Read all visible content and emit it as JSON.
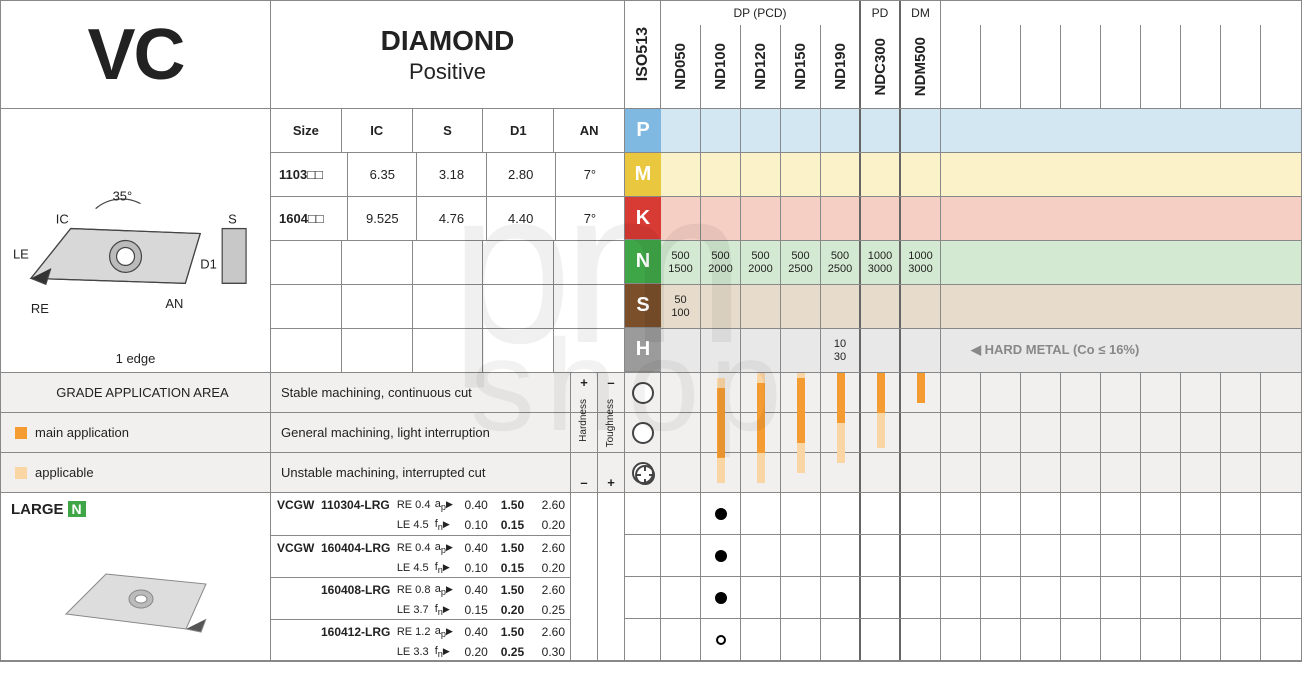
{
  "header": {
    "code": "VC",
    "name": "DIAMOND",
    "subtitle": "Positive",
    "iso_label": "ISO513"
  },
  "grade_groups": [
    {
      "label": "DP (PCD)",
      "span": 5
    },
    {
      "label": "PD",
      "span": 1
    },
    {
      "label": "DM",
      "span": 1
    }
  ],
  "grades": [
    "ND050",
    "ND100",
    "ND120",
    "ND150",
    "ND190",
    "NDC300",
    "NDM500"
  ],
  "extra_cols": 9,
  "geometry": {
    "angle": "35°",
    "labels": [
      "IC",
      "S",
      "LE",
      "D1",
      "AN",
      "RE"
    ],
    "caption": "1 edge"
  },
  "size_table": {
    "headers": [
      "Size",
      "IC",
      "S",
      "D1",
      "AN"
    ],
    "rows": [
      {
        "size": "1103□□",
        "ic": "6.35",
        "s": "3.18",
        "d1": "2.80",
        "an": "7°"
      },
      {
        "size": "1604□□",
        "ic": "9.525",
        "s": "4.76",
        "d1": "4.40",
        "an": "7°"
      }
    ],
    "blank_rows": 3
  },
  "iso_classes": [
    {
      "code": "P",
      "bg": "#7fb8e0",
      "row_bg": "#d3e7f3"
    },
    {
      "code": "M",
      "bg": "#e9c83f",
      "row_bg": "#fbf2c9"
    },
    {
      "code": "K",
      "bg": "#d83a34",
      "row_bg": "#f5cfc4"
    },
    {
      "code": "N",
      "bg": "#3fa648",
      "row_bg": "#d3e9d1",
      "vals": [
        [
          "500",
          "1500"
        ],
        [
          "500",
          "2000"
        ],
        [
          "500",
          "2000"
        ],
        [
          "500",
          "2500"
        ],
        [
          "500",
          "2500"
        ],
        [
          "1000",
          "3000"
        ],
        [
          "1000",
          "3000"
        ]
      ]
    },
    {
      "code": "S",
      "bg": "#7a4f2a",
      "row_bg": "#e7dccb",
      "vals": [
        [
          "50",
          "100"
        ]
      ]
    },
    {
      "code": "H",
      "bg": "#9b9b9b",
      "row_bg": "#e8e8e8",
      "vals": [
        null,
        null,
        null,
        null,
        [
          "10",
          "30"
        ]
      ],
      "note": "◀ HARD METAL (Co ≤ 16%)"
    }
  ],
  "app_area": {
    "title": "GRADE APPLICATION AREA",
    "legend": [
      {
        "color": "#f49b32",
        "label": "main application"
      },
      {
        "color": "#fbd6a5",
        "label": "applicable"
      }
    ],
    "rows": [
      "Stable machining, continuous cut",
      "General machining, light interruption",
      "Unstable machining, interrupted cut"
    ],
    "axis_hard": "Hardness",
    "axis_tough": "Toughness",
    "bars": {
      "comment": "per grade column: [row0 top,bottom, row1 t,b, row2 t,b] in px relative to 120px band, null=none, style main/light",
      "ND050": {
        "main": null,
        "light": null
      },
      "ND100": {
        "main": [
          15,
          85
        ],
        "light": [
          5,
          110
        ]
      },
      "ND120": {
        "main": [
          10,
          80
        ],
        "light": [
          0,
          110
        ]
      },
      "ND150": {
        "main": [
          5,
          70
        ],
        "light": [
          0,
          100
        ]
      },
      "ND190": {
        "main": [
          0,
          50
        ],
        "light": [
          0,
          90
        ]
      },
      "NDC300": {
        "main": [
          0,
          40
        ],
        "light": [
          0,
          75
        ]
      },
      "NDM500": {
        "main": [
          0,
          30
        ],
        "light": null
      }
    }
  },
  "large_block": {
    "title": "LARGE",
    "badge": "N",
    "products": [
      {
        "family": "VCGW",
        "code": "110304-LRG",
        "re": "RE 0.4",
        "le": "LE 4.5",
        "ap": [
          "0.40",
          "1.50",
          "2.60"
        ],
        "fn": [
          "0.10",
          "0.15",
          "0.20"
        ],
        "grade": {
          "ND100": "filled"
        }
      },
      {
        "family": "VCGW",
        "code": "160404-LRG",
        "re": "RE 0.4",
        "le": "LE 4.5",
        "ap": [
          "0.40",
          "1.50",
          "2.60"
        ],
        "fn": [
          "0.10",
          "0.15",
          "0.20"
        ],
        "grade": {
          "ND100": "filled"
        }
      },
      {
        "family": "",
        "code": "160408-LRG",
        "re": "RE 0.8",
        "le": "LE 3.7",
        "ap": [
          "0.40",
          "1.50",
          "2.60"
        ],
        "fn": [
          "0.15",
          "0.20",
          "0.25"
        ],
        "grade": {
          "ND100": "filled"
        }
      },
      {
        "family": "",
        "code": "160412-LRG",
        "re": "RE 1.2",
        "le": "LE 3.3",
        "ap": [
          "0.40",
          "1.50",
          "2.60"
        ],
        "fn": [
          "0.20",
          "0.25",
          "0.30"
        ],
        "grade": {
          "ND100": "hollow"
        }
      }
    ]
  },
  "colors": {
    "main_orange": "#f49b32",
    "light_orange": "#fbd6a5",
    "border": "#888888",
    "bg_grey": "#f1f0ee"
  }
}
